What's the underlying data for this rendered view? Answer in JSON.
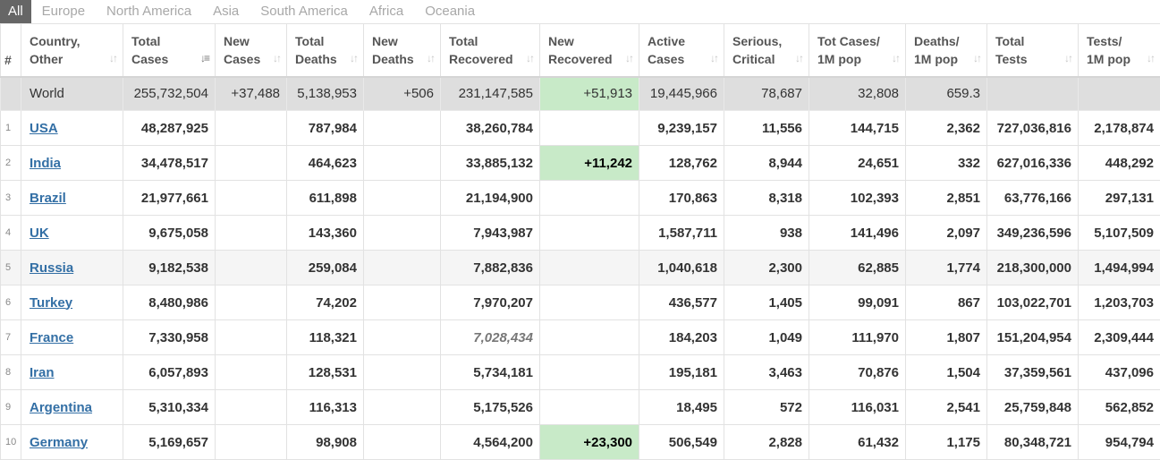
{
  "tabs": [
    "All",
    "Europe",
    "North America",
    "Asia",
    "South America",
    "Africa",
    "Oceania"
  ],
  "columns": [
    {
      "line1": "#",
      "line2": ""
    },
    {
      "line1": "Country,",
      "line2": "Other"
    },
    {
      "line1": "Total",
      "line2": "Cases"
    },
    {
      "line1": "New",
      "line2": "Cases"
    },
    {
      "line1": "Total",
      "line2": "Deaths"
    },
    {
      "line1": "New",
      "line2": "Deaths"
    },
    {
      "line1": "Total",
      "line2": "Recovered"
    },
    {
      "line1": "New",
      "line2": "Recovered"
    },
    {
      "line1": "Active",
      "line2": "Cases"
    },
    {
      "line1": "Serious,",
      "line2": "Critical"
    },
    {
      "line1": "Tot Cases/",
      "line2": "1M pop"
    },
    {
      "line1": "Deaths/",
      "line2": "1M pop"
    },
    {
      "line1": "Total",
      "line2": "Tests"
    },
    {
      "line1": "Tests/",
      "line2": "1M pop"
    }
  ],
  "world": {
    "country": "World",
    "total_cases": "255,732,504",
    "new_cases": "+37,488",
    "total_deaths": "5,138,953",
    "new_deaths": "+506",
    "total_recovered": "231,147,585",
    "new_recovered": "+51,913",
    "active_cases": "19,445,966",
    "serious": "78,687",
    "cases_per_1m": "32,808",
    "deaths_per_1m": "659.3",
    "total_tests": "",
    "tests_per_1m": ""
  },
  "rows": [
    {
      "rank": "1",
      "country": "USA",
      "total_cases": "48,287,925",
      "new_cases": "",
      "total_deaths": "787,984",
      "new_deaths": "",
      "total_recovered": "38,260,784",
      "new_recovered": "",
      "active_cases": "9,239,157",
      "serious": "11,556",
      "cases_per_1m": "144,715",
      "deaths_per_1m": "2,362",
      "total_tests": "727,036,816",
      "tests_per_1m": "2,178,874"
    },
    {
      "rank": "2",
      "country": "India",
      "total_cases": "34,478,517",
      "new_cases": "",
      "total_deaths": "464,623",
      "new_deaths": "",
      "total_recovered": "33,885,132",
      "new_recovered": "+11,242",
      "active_cases": "128,762",
      "serious": "8,944",
      "cases_per_1m": "24,651",
      "deaths_per_1m": "332",
      "total_tests": "627,016,336",
      "tests_per_1m": "448,292"
    },
    {
      "rank": "3",
      "country": "Brazil",
      "total_cases": "21,977,661",
      "new_cases": "",
      "total_deaths": "611,898",
      "new_deaths": "",
      "total_recovered": "21,194,900",
      "new_recovered": "",
      "active_cases": "170,863",
      "serious": "8,318",
      "cases_per_1m": "102,393",
      "deaths_per_1m": "2,851",
      "total_tests": "63,776,166",
      "tests_per_1m": "297,131"
    },
    {
      "rank": "4",
      "country": "UK",
      "total_cases": "9,675,058",
      "new_cases": "",
      "total_deaths": "143,360",
      "new_deaths": "",
      "total_recovered": "7,943,987",
      "new_recovered": "",
      "active_cases": "1,587,711",
      "serious": "938",
      "cases_per_1m": "141,496",
      "deaths_per_1m": "2,097",
      "total_tests": "349,236,596",
      "tests_per_1m": "5,107,509"
    },
    {
      "rank": "5",
      "country": "Russia",
      "total_cases": "9,182,538",
      "new_cases": "",
      "total_deaths": "259,084",
      "new_deaths": "",
      "total_recovered": "7,882,836",
      "new_recovered": "",
      "active_cases": "1,040,618",
      "serious": "2,300",
      "cases_per_1m": "62,885",
      "deaths_per_1m": "1,774",
      "total_tests": "218,300,000",
      "tests_per_1m": "1,494,994"
    },
    {
      "rank": "6",
      "country": "Turkey",
      "total_cases": "8,480,986",
      "new_cases": "",
      "total_deaths": "74,202",
      "new_deaths": "",
      "total_recovered": "7,970,207",
      "new_recovered": "",
      "active_cases": "436,577",
      "serious": "1,405",
      "cases_per_1m": "99,091",
      "deaths_per_1m": "867",
      "total_tests": "103,022,701",
      "tests_per_1m": "1,203,703"
    },
    {
      "rank": "7",
      "country": "France",
      "total_cases": "7,330,958",
      "new_cases": "",
      "total_deaths": "118,321",
      "new_deaths": "",
      "total_recovered": "7,028,434",
      "new_recovered": "",
      "active_cases": "184,203",
      "serious": "1,049",
      "cases_per_1m": "111,970",
      "deaths_per_1m": "1,807",
      "total_tests": "151,204,954",
      "tests_per_1m": "2,309,444"
    },
    {
      "rank": "8",
      "country": "Iran",
      "total_cases": "6,057,893",
      "new_cases": "",
      "total_deaths": "128,531",
      "new_deaths": "",
      "total_recovered": "5,734,181",
      "new_recovered": "",
      "active_cases": "195,181",
      "serious": "3,463",
      "cases_per_1m": "70,876",
      "deaths_per_1m": "1,504",
      "total_tests": "37,359,561",
      "tests_per_1m": "437,096"
    },
    {
      "rank": "9",
      "country": "Argentina",
      "total_cases": "5,310,334",
      "new_cases": "",
      "total_deaths": "116,313",
      "new_deaths": "",
      "total_recovered": "5,175,526",
      "new_recovered": "",
      "active_cases": "18,495",
      "serious": "572",
      "cases_per_1m": "116,031",
      "deaths_per_1m": "2,541",
      "total_tests": "25,759,848",
      "tests_per_1m": "562,852"
    },
    {
      "rank": "10",
      "country": "Germany",
      "total_cases": "5,169,657",
      "new_cases": "",
      "total_deaths": "98,908",
      "new_deaths": "",
      "total_recovered": "4,564,200",
      "new_recovered": "+23,300",
      "active_cases": "506,549",
      "serious": "2,828",
      "cases_per_1m": "61,432",
      "deaths_per_1m": "1,175",
      "total_tests": "80,348,721",
      "tests_per_1m": "954,794"
    }
  ],
  "colors": {
    "tab_active_bg": "#666666",
    "world_row_bg": "#dedede",
    "link": "#336fa5",
    "new_recovered_highlight": "#c8eac8"
  },
  "sort_icon": "sort-arrows-icon"
}
